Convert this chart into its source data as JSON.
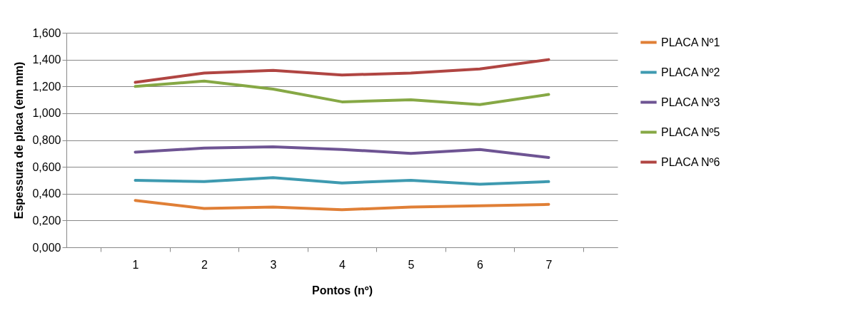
{
  "chart_data": {
    "type": "line",
    "xlabel": "Pontos (nº)",
    "ylabel": "Espessura de placa (em mm)",
    "categories": [
      "1",
      "2",
      "3",
      "4",
      "5",
      "6",
      "7"
    ],
    "series": [
      {
        "name": "PLACA Nº1",
        "color": "#e07f36",
        "values": [
          0.35,
          0.29,
          0.3,
          0.28,
          0.3,
          0.31,
          0.32
        ]
      },
      {
        "name": "PLACA Nº2",
        "color": "#3e9ab0",
        "values": [
          0.5,
          0.49,
          0.52,
          0.48,
          0.5,
          0.47,
          0.49
        ]
      },
      {
        "name": "PLACA Nº3",
        "color": "#6e5493",
        "values": [
          0.71,
          0.74,
          0.75,
          0.73,
          0.7,
          0.73,
          0.67
        ]
      },
      {
        "name": "PLACA Nº5",
        "color": "#86a845",
        "values": [
          1.2,
          1.24,
          1.18,
          1.085,
          1.1,
          1.065,
          1.14
        ]
      },
      {
        "name": "PLACA Nº6",
        "color": "#b04542",
        "values": [
          1.23,
          1.3,
          1.32,
          1.285,
          1.3,
          1.33,
          1.4
        ]
      }
    ],
    "ylim": [
      0,
      1.6
    ],
    "yticks": [
      {
        "value": 0,
        "label": "0,000"
      },
      {
        "value": 0.2,
        "label": "0,200"
      },
      {
        "value": 0.4,
        "label": "0,400"
      },
      {
        "value": 0.6,
        "label": "0,600"
      },
      {
        "value": 0.8,
        "label": "0,800"
      },
      {
        "value": 1.0,
        "label": "1,000"
      },
      {
        "value": 1.2,
        "label": "1,200"
      },
      {
        "value": 1.4,
        "label": "1,400"
      },
      {
        "value": 1.6,
        "label": "1,600"
      }
    ],
    "grid": "y",
    "legend": "right",
    "marker": "none",
    "line_style": "solid"
  }
}
